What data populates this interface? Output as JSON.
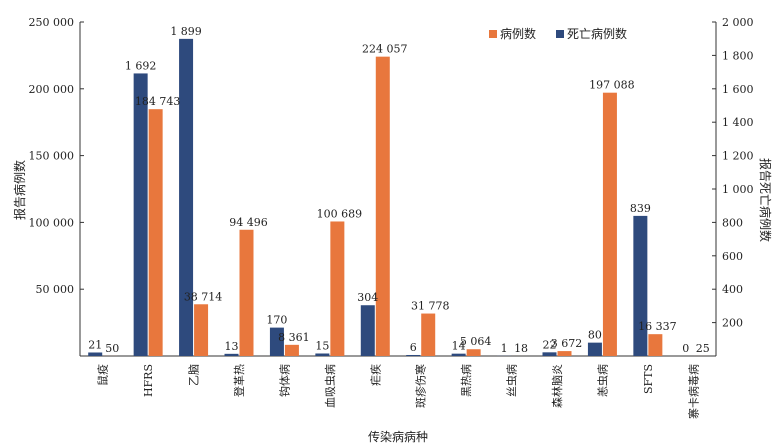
{
  "chart_data": {
    "type": "bar",
    "xlabel": "传染病病种",
    "ylabel": "报告病例数",
    "y2label": "报告死亡病例数",
    "ylim": [
      0,
      250000
    ],
    "y2lim": [
      0,
      2000
    ],
    "left_ticks": [
      "50 000",
      "100 000",
      "150 000",
      "200 000",
      "250 000"
    ],
    "right_ticks": [
      "200",
      "400",
      "600",
      "800",
      "1 000",
      "1 200",
      "1 400",
      "1 600",
      "1 800",
      "2 000"
    ],
    "grid": false,
    "legend_position": "top-right",
    "categories": [
      "鼠疫",
      "HFRS",
      "乙脑",
      "登革热",
      "钩体病",
      "血吸虫病",
      "疟疾",
      "斑疹伤寒",
      "黑热病",
      "丝虫病",
      "森林脑炎",
      "恙虫病",
      "SFTS",
      "寨卡病毒病"
    ],
    "series": [
      {
        "name": "死亡病例数",
        "axis": "right",
        "color": "#2e4a7d",
        "values": [
          21,
          1692,
          1899,
          13,
          170,
          15,
          304,
          6,
          14,
          1,
          22,
          80,
          839,
          0
        ],
        "labels": [
          "21",
          "1 692",
          "1 899",
          "13",
          "170",
          "15",
          "304",
          "6",
          "14",
          "1",
          "22",
          "80",
          "839",
          "0"
        ]
      },
      {
        "name": "病例数",
        "axis": "left",
        "color": "#e8773d",
        "values": [
          50,
          184743,
          38714,
          94496,
          8361,
          100689,
          224057,
          31778,
          5064,
          18,
          3672,
          197088,
          16337,
          25
        ],
        "labels": [
          "50",
          "184 743",
          "38 714",
          "94 496",
          "8 361",
          "100 689",
          "224 057",
          "31 778",
          "5 064",
          "18",
          "3 672",
          "197 088",
          "16 337",
          "25"
        ]
      }
    ],
    "legend": [
      {
        "name": "病例数",
        "color": "#e8773d"
      },
      {
        "name": "死亡病例数",
        "color": "#2e4a7d"
      }
    ]
  }
}
